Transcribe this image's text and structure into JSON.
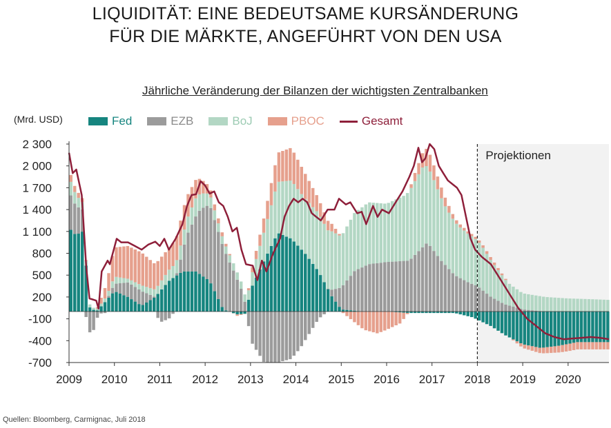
{
  "title_lines": [
    "LIQUIDITÄT: EINE BEDEUTSAME KURSÄNDERUNG",
    "FÜR DIE MÄRKTE, ANGEFÜHRT VON DEN USA"
  ],
  "colors": {
    "fed": "#16857f",
    "ezb": "#9b9b9b",
    "boj": "#b3d7c4",
    "pboc": "#e6a08d",
    "gesamt": "#8e1f3a",
    "proj_bg": "#f2f2f2"
  },
  "chart_data": {
    "type": "bar",
    "subtitle": "Jährliche Veränderung der Bilanzen der wichtigsten Zentralbanken",
    "ylabel": "(Mrd. USD)",
    "ylim": [
      -700,
      2300
    ],
    "yticks": [
      -700,
      -400,
      -100,
      200,
      500,
      800,
      1100,
      1400,
      1700,
      2000,
      2300
    ],
    "ytick_labels": [
      "-700",
      "-400",
      "-100",
      "200",
      "500",
      "800",
      "1 100",
      "1 400",
      "1 700",
      "2 000",
      "2 300"
    ],
    "x_start": 2009,
    "x_end": 2020.9,
    "year_labels": [
      "2009",
      "2010",
      "2011",
      "2012",
      "2013",
      "2014",
      "2015",
      "2016",
      "2017",
      "2018",
      "2019",
      "2020"
    ],
    "projection_start": 2018,
    "projection_label": "Projektionen",
    "legend": [
      "Fed",
      "EZB",
      "BoJ",
      "PBOC",
      "Gesamt"
    ],
    "note": "Series are monthly year-over-year changes (Mrd. USD), anchor values estimated from the chart and linearly interpolated between anchors.",
    "series": [
      {
        "name": "Fed",
        "anchors": [
          [
            2009.0,
            1150
          ],
          [
            2009.15,
            1050
          ],
          [
            2009.3,
            1100
          ],
          [
            2009.38,
            600
          ],
          [
            2009.45,
            60
          ],
          [
            2009.6,
            0
          ],
          [
            2009.75,
            100
          ],
          [
            2010.0,
            280
          ],
          [
            2010.3,
            200
          ],
          [
            2010.6,
            80
          ],
          [
            2010.9,
            200
          ],
          [
            2011.2,
            420
          ],
          [
            2011.5,
            550
          ],
          [
            2011.8,
            550
          ],
          [
            2012.1,
            420
          ],
          [
            2012.4,
            30
          ],
          [
            2012.7,
            -40
          ],
          [
            2012.9,
            -30
          ],
          [
            2013.0,
            300
          ],
          [
            2013.3,
            700
          ],
          [
            2013.6,
            1080
          ],
          [
            2013.9,
            1000
          ],
          [
            2014.2,
            800
          ],
          [
            2014.5,
            550
          ],
          [
            2014.8,
            200
          ],
          [
            2015.0,
            30
          ],
          [
            2015.5,
            0
          ],
          [
            2016.0,
            0
          ],
          [
            2016.5,
            -20
          ],
          [
            2017.0,
            -20
          ],
          [
            2017.5,
            -20
          ],
          [
            2017.9,
            -80
          ],
          [
            2018.3,
            -200
          ],
          [
            2018.6,
            -320
          ],
          [
            2019.0,
            -450
          ],
          [
            2019.4,
            -500
          ],
          [
            2019.8,
            -470
          ],
          [
            2020.2,
            -420
          ],
          [
            2020.9,
            -420
          ]
        ]
      },
      {
        "name": "EZB",
        "anchors": [
          [
            2009.0,
            500
          ],
          [
            2009.15,
            400
          ],
          [
            2009.3,
            300
          ],
          [
            2009.42,
            -300
          ],
          [
            2009.55,
            -250
          ],
          [
            2009.65,
            -30
          ],
          [
            2009.8,
            -20
          ],
          [
            2010.0,
            100
          ],
          [
            2010.3,
            200
          ],
          [
            2010.6,
            200
          ],
          [
            2010.9,
            0
          ],
          [
            2011.0,
            -150
          ],
          [
            2011.2,
            -100
          ],
          [
            2011.4,
            50
          ],
          [
            2011.6,
            500
          ],
          [
            2011.9,
            900
          ],
          [
            2012.1,
            1050
          ],
          [
            2012.4,
            850
          ],
          [
            2012.6,
            600
          ],
          [
            2012.8,
            300
          ],
          [
            2012.9,
            80
          ],
          [
            2013.0,
            -400
          ],
          [
            2013.3,
            -700
          ],
          [
            2013.6,
            -700
          ],
          [
            2013.9,
            -650
          ],
          [
            2014.1,
            -500
          ],
          [
            2014.3,
            -300
          ],
          [
            2014.5,
            -100
          ],
          [
            2014.7,
            0
          ],
          [
            2015.0,
            300
          ],
          [
            2015.3,
            550
          ],
          [
            2015.6,
            650
          ],
          [
            2016.0,
            680
          ],
          [
            2016.5,
            700
          ],
          [
            2016.9,
            950
          ],
          [
            2017.2,
            700
          ],
          [
            2017.5,
            500
          ],
          [
            2017.8,
            400
          ],
          [
            2018.0,
            350
          ],
          [
            2018.3,
            200
          ],
          [
            2018.6,
            100
          ],
          [
            2019.0,
            30
          ],
          [
            2019.5,
            0
          ],
          [
            2020.9,
            0
          ]
        ]
      },
      {
        "name": "BoJ",
        "anchors": [
          [
            2009.0,
            200
          ],
          [
            2009.15,
            150
          ],
          [
            2009.3,
            100
          ],
          [
            2009.4,
            50
          ],
          [
            2009.6,
            20
          ],
          [
            2009.8,
            50
          ],
          [
            2010.0,
            100
          ],
          [
            2010.3,
            50
          ],
          [
            2010.6,
            80
          ],
          [
            2010.9,
            100
          ],
          [
            2011.2,
            150
          ],
          [
            2011.5,
            200
          ],
          [
            2011.8,
            250
          ],
          [
            2012.1,
            150
          ],
          [
            2012.4,
            100
          ],
          [
            2012.7,
            100
          ],
          [
            2012.9,
            100
          ],
          [
            2013.0,
            150
          ],
          [
            2013.3,
            400
          ],
          [
            2013.6,
            700
          ],
          [
            2013.9,
            800
          ],
          [
            2014.2,
            750
          ],
          [
            2014.5,
            800
          ],
          [
            2014.8,
            800
          ],
          [
            2015.0,
            700
          ],
          [
            2015.3,
            800
          ],
          [
            2015.6,
            850
          ],
          [
            2016.0,
            800
          ],
          [
            2016.4,
            900
          ],
          [
            2016.8,
            1100
          ],
          [
            2017.0,
            1000
          ],
          [
            2017.3,
            800
          ],
          [
            2017.6,
            700
          ],
          [
            2017.9,
            650
          ],
          [
            2018.1,
            600
          ],
          [
            2018.4,
            450
          ],
          [
            2018.7,
            300
          ],
          [
            2019.0,
            220
          ],
          [
            2019.5,
            200
          ],
          [
            2020.0,
            180
          ],
          [
            2020.5,
            170
          ],
          [
            2020.9,
            160
          ]
        ]
      },
      {
        "name": "PBOC",
        "anchors": [
          [
            2009.0,
            100
          ],
          [
            2009.15,
            80
          ],
          [
            2009.3,
            50
          ],
          [
            2009.4,
            0
          ],
          [
            2009.6,
            0
          ],
          [
            2009.8,
            150
          ],
          [
            2010.0,
            400
          ],
          [
            2010.3,
            450
          ],
          [
            2010.6,
            450
          ],
          [
            2010.9,
            350
          ],
          [
            2011.2,
            300
          ],
          [
            2011.5,
            350
          ],
          [
            2011.8,
            250
          ],
          [
            2012.1,
            100
          ],
          [
            2012.4,
            50
          ],
          [
            2012.7,
            -20
          ],
          [
            2012.9,
            0
          ],
          [
            2013.0,
            50
          ],
          [
            2013.3,
            200
          ],
          [
            2013.6,
            400
          ],
          [
            2013.9,
            450
          ],
          [
            2014.2,
            350
          ],
          [
            2014.5,
            200
          ],
          [
            2014.8,
            100
          ],
          [
            2015.0,
            0
          ],
          [
            2015.2,
            -100
          ],
          [
            2015.5,
            -250
          ],
          [
            2015.8,
            -300
          ],
          [
            2016.0,
            -250
          ],
          [
            2016.3,
            -150
          ],
          [
            2016.6,
            100
          ],
          [
            2016.9,
            250
          ],
          [
            2017.2,
            150
          ],
          [
            2017.5,
            50
          ],
          [
            2017.8,
            30
          ],
          [
            2018.0,
            30
          ],
          [
            2018.3,
            40
          ],
          [
            2018.6,
            20
          ],
          [
            2019.0,
            -50
          ],
          [
            2019.5,
            -80
          ],
          [
            2020.0,
            -100
          ],
          [
            2020.5,
            -100
          ],
          [
            2020.9,
            -100
          ]
        ]
      },
      {
        "name": "Gesamt",
        "anchors": [
          [
            2009.0,
            2180
          ],
          [
            2009.08,
            1900
          ],
          [
            2009.16,
            1950
          ],
          [
            2009.28,
            1600
          ],
          [
            2009.38,
            600
          ],
          [
            2009.45,
            180
          ],
          [
            2009.6,
            150
          ],
          [
            2009.65,
            40
          ],
          [
            2009.72,
            550
          ],
          [
            2009.85,
            700
          ],
          [
            2009.9,
            650
          ],
          [
            2010.05,
            1000
          ],
          [
            2010.15,
            950
          ],
          [
            2010.3,
            950
          ],
          [
            2010.45,
            900
          ],
          [
            2010.6,
            850
          ],
          [
            2010.75,
            920
          ],
          [
            2010.9,
            960
          ],
          [
            2011.0,
            900
          ],
          [
            2011.1,
            1000
          ],
          [
            2011.2,
            850
          ],
          [
            2011.35,
            1000
          ],
          [
            2011.5,
            1200
          ],
          [
            2011.6,
            1450
          ],
          [
            2011.7,
            1600
          ],
          [
            2011.8,
            1610
          ],
          [
            2011.9,
            1790
          ],
          [
            2012.0,
            1730
          ],
          [
            2012.1,
            1620
          ],
          [
            2012.2,
            1650
          ],
          [
            2012.3,
            1500
          ],
          [
            2012.4,
            1450
          ],
          [
            2012.5,
            1300
          ],
          [
            2012.6,
            1100
          ],
          [
            2012.7,
            1150
          ],
          [
            2012.8,
            850
          ],
          [
            2012.9,
            650
          ],
          [
            2013.05,
            630
          ],
          [
            2013.15,
            430
          ],
          [
            2013.25,
            700
          ],
          [
            2013.35,
            550
          ],
          [
            2013.5,
            800
          ],
          [
            2013.65,
            1000
          ],
          [
            2013.75,
            1300
          ],
          [
            2013.85,
            1450
          ],
          [
            2013.95,
            1550
          ],
          [
            2014.05,
            1500
          ],
          [
            2014.15,
            1550
          ],
          [
            2014.25,
            1500
          ],
          [
            2014.35,
            1350
          ],
          [
            2014.45,
            1300
          ],
          [
            2014.55,
            1250
          ],
          [
            2014.7,
            1400
          ],
          [
            2014.85,
            1400
          ],
          [
            2014.95,
            1550
          ],
          [
            2015.1,
            1470
          ],
          [
            2015.2,
            1500
          ],
          [
            2015.35,
            1350
          ],
          [
            2015.45,
            1370
          ],
          [
            2015.55,
            1200
          ],
          [
            2015.7,
            1450
          ],
          [
            2015.8,
            1300
          ],
          [
            2015.9,
            1400
          ],
          [
            2016.05,
            1350
          ],
          [
            2016.2,
            1500
          ],
          [
            2016.35,
            1650
          ],
          [
            2016.5,
            1850
          ],
          [
            2016.6,
            2000
          ],
          [
            2016.7,
            2250
          ],
          [
            2016.78,
            2050
          ],
          [
            2016.85,
            2100
          ],
          [
            2016.95,
            2300
          ],
          [
            2017.05,
            2230
          ],
          [
            2017.15,
            2000
          ],
          [
            2017.25,
            1900
          ],
          [
            2017.35,
            1800
          ],
          [
            2017.45,
            1750
          ],
          [
            2017.55,
            1700
          ],
          [
            2017.65,
            1600
          ],
          [
            2017.75,
            1300
          ],
          [
            2017.85,
            1000
          ],
          [
            2017.95,
            850
          ],
          [
            2018.1,
            750
          ],
          [
            2018.2,
            700
          ],
          [
            2018.3,
            650
          ],
          [
            2018.5,
            450
          ],
          [
            2018.7,
            250
          ],
          [
            2018.9,
            50
          ],
          [
            2019.1,
            -100
          ],
          [
            2019.3,
            -200
          ],
          [
            2019.5,
            -300
          ],
          [
            2019.7,
            -350
          ],
          [
            2019.9,
            -380
          ],
          [
            2020.1,
            -370
          ],
          [
            2020.3,
            -360
          ],
          [
            2020.5,
            -350
          ],
          [
            2020.7,
            -360
          ],
          [
            2020.9,
            -380
          ]
        ]
      }
    ]
  },
  "source": "Quellen: Bloomberg, Carmignac, Juli 2018"
}
